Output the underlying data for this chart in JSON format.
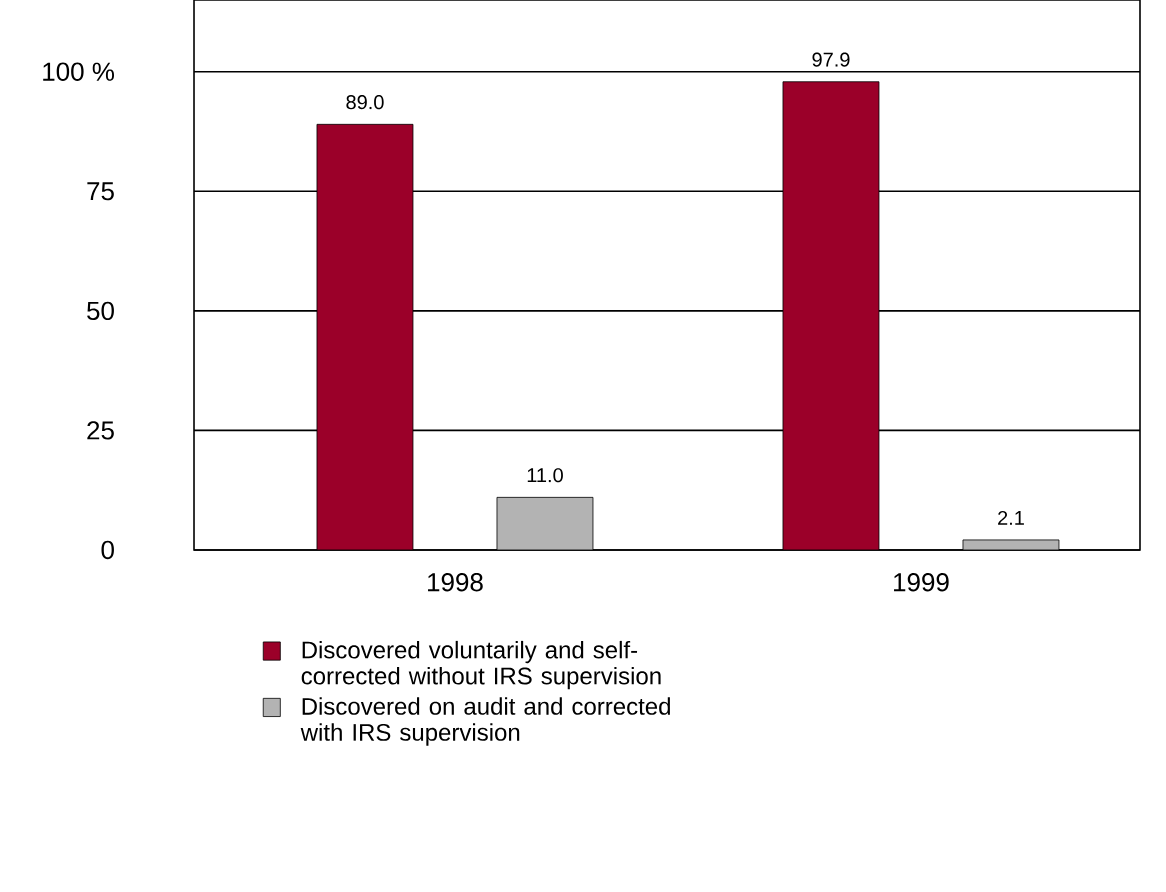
{
  "chart_data": {
    "type": "bar",
    "categories": [
      "1998",
      "1999"
    ],
    "series": [
      {
        "name": "Discovered voluntarily and self-corrected without IRS supervision",
        "color": "#9b0029",
        "values": [
          89.0,
          97.9
        ],
        "value_labels": [
          "89.0",
          "97.9"
        ]
      },
      {
        "name": "Discovered on audit and corrected with IRS supervision",
        "color": "#b3b3b3",
        "values": [
          11.0,
          2.1
        ],
        "value_labels": [
          "11.0",
          "2.1"
        ]
      }
    ],
    "ylim": [
      0,
      115
    ],
    "yticks": [
      0,
      25,
      50,
      75,
      {
        "value": 100,
        "label": "100 %"
      }
    ],
    "grid": "y",
    "legend": "bottom"
  }
}
